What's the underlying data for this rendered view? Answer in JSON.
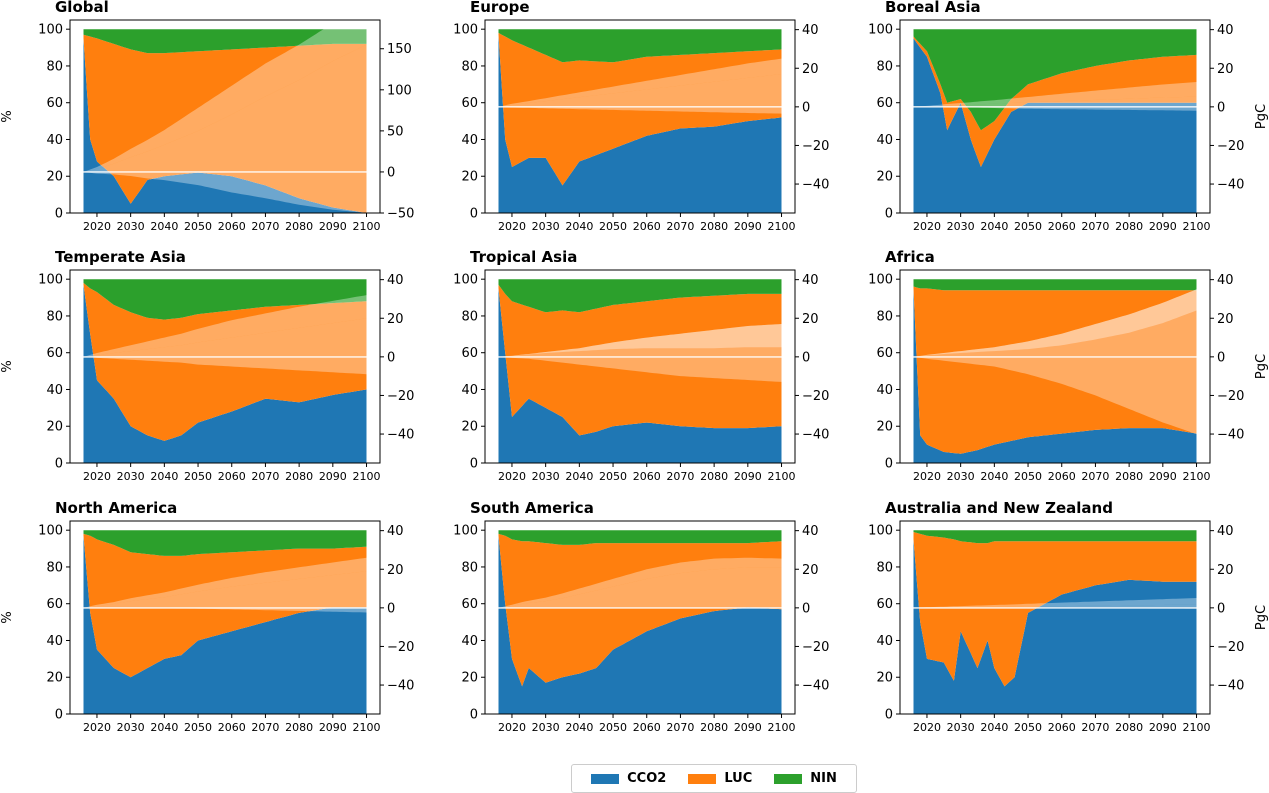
{
  "chart_data": {
    "type": "area",
    "description_free": true,
    "x_ticks": [
      2020,
      2030,
      2040,
      2050,
      2060,
      2070,
      2080,
      2090,
      2100
    ],
    "x_range": [
      2012,
      2104
    ],
    "left_axis": {
      "label": "%",
      "range": [
        0,
        105
      ],
      "ticks": [
        0,
        20,
        40,
        60,
        80,
        100
      ]
    },
    "right_axis": {
      "label": "PgC"
    },
    "series_colors": {
      "CCO2": "#1f77b4",
      "LUC": "#ff7f0e",
      "NIN": "#2ca02c"
    },
    "legend": {
      "placement": "bottom-center",
      "entries": [
        "CCO2",
        "LUC",
        "NIN"
      ]
    },
    "panels": [
      {
        "title": "Global",
        "right_ticks": [
          -50,
          0,
          50,
          100,
          150
        ],
        "right_range": [
          -50,
          185
        ],
        "show_left_label": true,
        "show_right_label": false,
        "years": [
          2016,
          2018,
          2020,
          2025,
          2030,
          2035,
          2040,
          2050,
          2060,
          2070,
          2080,
          2090,
          2100
        ],
        "cco2": [
          95,
          40,
          28,
          20,
          5,
          18,
          20,
          22,
          20,
          15,
          8,
          3,
          0
        ],
        "luc_top": [
          97,
          96,
          95,
          92,
          89,
          87,
          87,
          88,
          89,
          90,
          91,
          92,
          92
        ],
        "cum_luc": [
          0,
          2,
          4,
          10,
          18,
          25,
          33,
          50,
          70,
          92,
          112,
          135,
          155
        ],
        "cum_cco2": [
          0,
          1,
          2,
          6,
          10,
          14,
          18,
          28,
          35,
          40,
          43,
          46,
          50
        ],
        "cum_nin": [
          0,
          -1,
          -2,
          -3,
          -5,
          -8,
          -10,
          -16,
          -25,
          -32,
          -40,
          -46,
          -50
        ]
      },
      {
        "title": "Europe",
        "right_ticks": [
          -40,
          -20,
          0,
          20,
          40
        ],
        "right_range": [
          -55,
          45
        ],
        "show_left_label": false,
        "show_right_label": false,
        "years": [
          2016,
          2018,
          2020,
          2025,
          2030,
          2035,
          2040,
          2050,
          2060,
          2070,
          2080,
          2090,
          2100
        ],
        "cco2": [
          97,
          40,
          25,
          30,
          30,
          15,
          28,
          35,
          42,
          46,
          47,
          50,
          52
        ],
        "luc_top": [
          98,
          96,
          94,
          90,
          86,
          82,
          83,
          82,
          85,
          86,
          87,
          88,
          89
        ],
        "cum_luc": [
          0,
          0.5,
          1,
          2,
          3,
          4,
          5,
          7,
          9,
          11,
          13,
          15,
          17
        ],
        "cum_cco2": [
          0,
          0.3,
          0.6,
          1,
          1.5,
          2,
          2.5,
          3.5,
          4.5,
          5.5,
          6.5,
          7.5,
          8
        ],
        "cum_nin": [
          0,
          0,
          -0.3,
          -0.5,
          -0.8,
          -1,
          -1.2,
          -1.6,
          -2,
          -2.4,
          -2.8,
          -3.2,
          -3.5
        ]
      },
      {
        "title": "Boreal Asia",
        "right_ticks": [
          -40,
          -20,
          0,
          20,
          40
        ],
        "right_range": [
          -55,
          45
        ],
        "show_left_label": false,
        "show_right_label": true,
        "years": [
          2016,
          2020,
          2024,
          2026,
          2030,
          2033,
          2036,
          2040,
          2045,
          2050,
          2060,
          2070,
          2080,
          2090,
          2100
        ],
        "cco2": [
          95,
          85,
          65,
          45,
          60,
          40,
          25,
          40,
          55,
          60,
          60,
          60,
          60,
          60,
          60
        ],
        "luc_top": [
          96,
          88,
          70,
          60,
          62,
          55,
          45,
          50,
          62,
          70,
          76,
          80,
          83,
          85,
          86
        ],
        "cum_luc": [
          0,
          0.3,
          0.6,
          0.8,
          1,
          1.2,
          1.4,
          1.6,
          2,
          2.3,
          3,
          3.6,
          4.2,
          4.8,
          5.3
        ],
        "cum_cco2": [
          0,
          0.2,
          0.5,
          0.7,
          1,
          1.2,
          1.5,
          1.8,
          2.3,
          2.8,
          3.8,
          4.8,
          5.8,
          6.8,
          7.6
        ],
        "cum_nin": [
          0,
          0,
          0,
          0,
          0,
          -0.2,
          -0.4,
          -0.6,
          -0.8,
          -1,
          -1.2,
          -1.4,
          -1.6,
          -1.8,
          -2
        ]
      },
      {
        "title": "Temperate Asia",
        "right_ticks": [
          -40,
          -20,
          0,
          20,
          40
        ],
        "right_range": [
          -55,
          45
        ],
        "show_left_label": true,
        "show_right_label": false,
        "years": [
          2016,
          2018,
          2020,
          2025,
          2030,
          2035,
          2040,
          2045,
          2050,
          2060,
          2070,
          2080,
          2090,
          2100
        ],
        "cco2": [
          97,
          70,
          45,
          35,
          20,
          15,
          12,
          15,
          22,
          28,
          35,
          33,
          37,
          40
        ],
        "luc_top": [
          98,
          95,
          93,
          86,
          82,
          79,
          78,
          79,
          81,
          83,
          85,
          86,
          87,
          88
        ],
        "cum_luc": [
          0,
          0.5,
          1,
          2,
          3,
          4,
          5,
          6,
          7.5,
          10,
          12.5,
          15,
          17.5,
          20
        ],
        "cum_cco2": [
          0,
          0.5,
          1,
          2,
          3,
          4,
          5,
          6,
          7,
          9,
          10,
          11,
          11.5,
          12
        ],
        "cum_nin": [
          0,
          0,
          -0.5,
          -1,
          -1.5,
          -2,
          -2.5,
          -3,
          -4,
          -5,
          -6,
          -7,
          -8,
          -9
        ]
      },
      {
        "title": "Tropical Asia",
        "right_ticks": [
          -40,
          -20,
          0,
          20,
          40
        ],
        "right_range": [
          -55,
          45
        ],
        "show_left_label": false,
        "show_right_label": false,
        "years": [
          2016,
          2018,
          2020,
          2025,
          2030,
          2035,
          2040,
          2045,
          2050,
          2060,
          2070,
          2080,
          2090,
          2100
        ],
        "cco2": [
          95,
          60,
          25,
          35,
          30,
          25,
          15,
          17,
          20,
          22,
          20,
          19,
          19,
          20
        ],
        "luc_top": [
          97,
          92,
          88,
          85,
          82,
          83,
          82,
          84,
          86,
          88,
          90,
          91,
          92,
          92
        ],
        "cum_luc": [
          0,
          0.3,
          0.6,
          1.5,
          2.5,
          3.5,
          4.5,
          6,
          7.5,
          10,
          12,
          14,
          16,
          17
        ],
        "cum_cco2": [
          0,
          0,
          0,
          -0.2,
          -0.5,
          -1,
          -1.5,
          -2.5,
          -3.5,
          -5.5,
          -7.5,
          -9.5,
          -11,
          -12
        ],
        "cum_nin": [
          0,
          0,
          -0.5,
          -1,
          -2,
          -3,
          -4,
          -5,
          -6,
          -8,
          -10,
          -11,
          -12,
          -13
        ]
      },
      {
        "title": "Africa",
        "right_ticks": [
          -40,
          -20,
          0,
          20,
          40
        ],
        "right_range": [
          -55,
          45
        ],
        "show_left_label": false,
        "show_right_label": true,
        "years": [
          2016,
          2018,
          2020,
          2025,
          2030,
          2035,
          2040,
          2045,
          2050,
          2060,
          2070,
          2080,
          2090,
          2100
        ],
        "cco2": [
          95,
          15,
          10,
          6,
          5,
          7,
          10,
          12,
          14,
          16,
          18,
          19,
          19,
          16
        ],
        "luc_top": [
          96,
          95,
          95,
          94,
          94,
          94,
          94,
          94,
          94,
          94,
          94,
          94,
          94,
          94
        ],
        "cum_luc": [
          0,
          0.5,
          1,
          2,
          3,
          4,
          5,
          6.5,
          8,
          12,
          17,
          22,
          28,
          35
        ],
        "cum_cco2": [
          0,
          0,
          -0.2,
          -0.5,
          -1,
          -1.5,
          -2,
          -3,
          -4,
          -6,
          -8,
          -9.5,
          -10.5,
          -11
        ],
        "cum_nin": [
          0,
          -0.5,
          -1,
          -2,
          -3,
          -4,
          -5,
          -7,
          -9,
          -14,
          -20,
          -27,
          -34,
          -40
        ]
      },
      {
        "title": "North America",
        "right_ticks": [
          -40,
          -20,
          0,
          20,
          40
        ],
        "right_range": [
          -55,
          45
        ],
        "show_left_label": true,
        "show_right_label": false,
        "years": [
          2016,
          2018,
          2020,
          2025,
          2030,
          2035,
          2040,
          2045,
          2050,
          2060,
          2070,
          2080,
          2090,
          2100
        ],
        "cco2": [
          97,
          55,
          35,
          25,
          20,
          25,
          30,
          32,
          40,
          45,
          50,
          55,
          58,
          58
        ],
        "luc_top": [
          98,
          97,
          95,
          92,
          88,
          87,
          86,
          86,
          87,
          88,
          89,
          90,
          90,
          91
        ],
        "cum_luc": [
          0,
          0.5,
          1,
          2,
          3.5,
          4.5,
          5.5,
          7,
          8.5,
          11,
          13,
          15,
          17,
          19
        ],
        "cum_cco2": [
          0,
          0.3,
          0.6,
          1,
          1.5,
          2,
          2.5,
          3,
          3.5,
          4.5,
          5.5,
          6,
          6.5,
          7
        ],
        "cum_nin": [
          0,
          0,
          0,
          0,
          0,
          0,
          0,
          -0.2,
          -0.4,
          -0.8,
          -1.2,
          -1.6,
          -2,
          -2.4
        ]
      },
      {
        "title": "South America",
        "right_ticks": [
          -40,
          -20,
          0,
          20,
          40
        ],
        "right_range": [
          -55,
          45
        ],
        "show_left_label": false,
        "show_right_label": false,
        "years": [
          2016,
          2018,
          2020,
          2023,
          2025,
          2030,
          2035,
          2040,
          2045,
          2050,
          2060,
          2070,
          2080,
          2090,
          2100
        ],
        "cco2": [
          97,
          60,
          30,
          15,
          25,
          17,
          20,
          22,
          25,
          35,
          45,
          52,
          56,
          58,
          57
        ],
        "luc_top": [
          98,
          97,
          95,
          94,
          94,
          93,
          92,
          92,
          93,
          93,
          93,
          93,
          93,
          93,
          94
        ],
        "cum_luc": [
          0,
          0.5,
          1,
          2,
          2.5,
          3.5,
          5,
          7,
          9,
          11,
          15,
          18,
          20,
          21,
          21
        ],
        "cum_cco2": [
          0,
          0.3,
          0.6,
          1,
          1.2,
          1.8,
          2.5,
          3,
          3.5,
          4,
          5,
          5.5,
          5.5,
          5,
          4.5
        ],
        "cum_nin": [
          0,
          0,
          0,
          0,
          0,
          0,
          0,
          0,
          0,
          0,
          0,
          0,
          0,
          0,
          0
        ]
      },
      {
        "title": "Australia and New Zealand",
        "right_ticks": [
          -40,
          -20,
          0,
          20,
          40
        ],
        "right_range": [
          -55,
          45
        ],
        "show_left_label": false,
        "show_right_label": true,
        "years": [
          2016,
          2018,
          2020,
          2025,
          2028,
          2030,
          2035,
          2038,
          2040,
          2043,
          2046,
          2050,
          2055,
          2060,
          2070,
          2080,
          2090,
          2100
        ],
        "cco2": [
          95,
          50,
          30,
          28,
          18,
          45,
          25,
          40,
          25,
          15,
          20,
          55,
          60,
          65,
          70,
          73,
          72,
          72
        ],
        "luc_top": [
          99,
          98,
          97,
          96,
          95,
          94,
          93,
          93,
          94,
          94,
          94,
          94,
          94,
          94,
          94,
          94,
          94,
          94
        ],
        "cum_luc": [
          0,
          0,
          0.1,
          0.2,
          0.3,
          0.3,
          0.4,
          0.4,
          0.5,
          0.5,
          0.6,
          0.7,
          0.8,
          0.9,
          1.1,
          1.3,
          1.5,
          1.7
        ],
        "cum_cco2": [
          0,
          0.1,
          0.2,
          0.4,
          0.5,
          0.6,
          0.8,
          0.9,
          1,
          1.1,
          1.2,
          1.4,
          1.6,
          1.8,
          2.2,
          2.6,
          3,
          3.4
        ],
        "cum_nin": [
          0,
          0,
          0,
          0,
          0,
          0,
          0,
          0,
          0,
          0,
          0,
          0,
          0,
          0,
          -0.1,
          -0.2,
          -0.3,
          -0.4
        ]
      }
    ]
  }
}
